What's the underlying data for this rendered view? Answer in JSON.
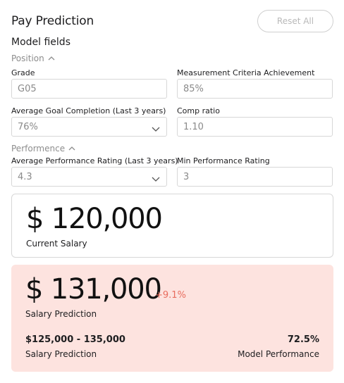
{
  "header": {
    "title": "Pay Prediction",
    "reset_label": "Reset All"
  },
  "model_fields": {
    "title": "Model fields"
  },
  "position_group": {
    "label": "Position",
    "expanded": true,
    "fields": {
      "grade": {
        "label": "Grade",
        "value": "G05"
      },
      "measurement": {
        "label": "Measurement Criteria Achievement",
        "value": "85%"
      },
      "goal_completion": {
        "label": "Average Goal Completion  (Last 3 years)",
        "value": "76%"
      },
      "comp_ratio": {
        "label": "Comp ratio",
        "value": "1.10"
      }
    }
  },
  "performance_group": {
    "label": "Performence",
    "expanded": true,
    "fields": {
      "avg_rating": {
        "label": "Average Performance Rating  (Last 3 years)",
        "value": "4.3"
      },
      "min_rating": {
        "label": "Min Performance Rating",
        "value": "3"
      }
    }
  },
  "current_salary": {
    "amount": "$ 120,000",
    "label": "Current Salary"
  },
  "prediction": {
    "amount": "$ 131,000",
    "change": "+9.1%",
    "label": "Salary Prediction",
    "range_value": "$125,000 - 135,000",
    "range_label": "Salary Prediction",
    "model_perf_value": "72.5%",
    "model_perf_label": "Model Performance"
  },
  "colors": {
    "accent_change": "#e86d5e",
    "prediction_card_bg": "#fde3df",
    "muted_text": "#8a8a8a"
  },
  "icons": {
    "collapse": "chevron-up-icon",
    "dropdown": "chevron-down-icon"
  }
}
